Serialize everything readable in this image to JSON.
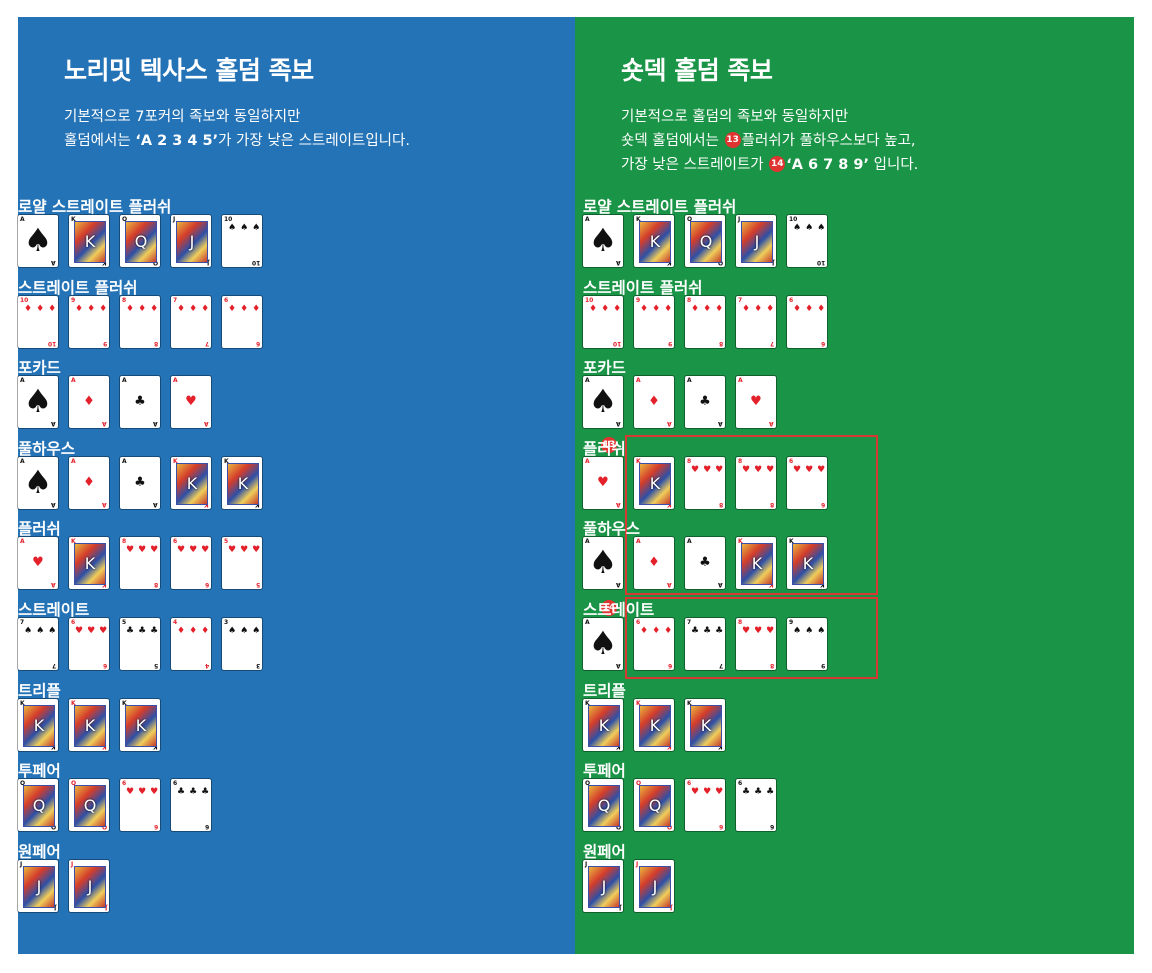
{
  "left": {
    "title": "노리밋 텍사스 홀덤 족보",
    "desc_line1": "기본적으로 7포커의 족보와 동일하지만",
    "desc_line2_pre": "홀덤에서는 ",
    "desc_line2_bold": "‘A 2 3 4 5’",
    "desc_line2_post": "가 가장 낮은 스트레이트입니다.",
    "hands": [
      {
        "label": "로얄 스트레이트 플러쉬",
        "cards": [
          [
            "A",
            "♠",
            "blk",
            "big"
          ],
          [
            "K",
            "♠",
            "blk",
            "face"
          ],
          [
            "Q",
            "♠",
            "blk",
            "face"
          ],
          [
            "J",
            "♠",
            "blk",
            "face"
          ],
          [
            "10",
            "♠",
            "blk",
            "pip"
          ]
        ]
      },
      {
        "label": "스트레이트 플러쉬",
        "cards": [
          [
            "10",
            "♦",
            "red",
            "pip"
          ],
          [
            "9",
            "♦",
            "red",
            "pip"
          ],
          [
            "8",
            "♦",
            "red",
            "pip"
          ],
          [
            "7",
            "♦",
            "red",
            "pip"
          ],
          [
            "6",
            "♦",
            "red",
            "pip"
          ]
        ]
      },
      {
        "label": "포카드",
        "cards": [
          [
            "A",
            "♠",
            "blk",
            "big"
          ],
          [
            "A",
            "♦",
            "red",
            "sm"
          ],
          [
            "A",
            "♣",
            "blk",
            "sm"
          ],
          [
            "A",
            "♥",
            "red",
            "sm"
          ]
        ]
      },
      {
        "label": "풀하우스",
        "cards": [
          [
            "A",
            "♠",
            "blk",
            "big"
          ],
          [
            "A",
            "♦",
            "red",
            "sm"
          ],
          [
            "A",
            "♣",
            "blk",
            "sm"
          ],
          [
            "K",
            "♦",
            "red",
            "face"
          ],
          [
            "K",
            "♣",
            "blk",
            "face"
          ]
        ]
      },
      {
        "label": "플러쉬",
        "cards": [
          [
            "A",
            "♥",
            "red",
            "sm"
          ],
          [
            "K",
            "♥",
            "red",
            "face"
          ],
          [
            "8",
            "♥",
            "red",
            "pip"
          ],
          [
            "6",
            "♥",
            "red",
            "pip"
          ],
          [
            "5",
            "♥",
            "red",
            "pip"
          ]
        ]
      },
      {
        "label": "스트레이트",
        "cards": [
          [
            "7",
            "♠",
            "blk",
            "pip"
          ],
          [
            "6",
            "♥",
            "red",
            "pip"
          ],
          [
            "5",
            "♣",
            "blk",
            "pip"
          ],
          [
            "4",
            "♦",
            "red",
            "pip"
          ],
          [
            "3",
            "♠",
            "blk",
            "pip"
          ]
        ]
      },
      {
        "label": "트리플",
        "cards": [
          [
            "K",
            "♠",
            "blk",
            "face"
          ],
          [
            "K",
            "♦",
            "red",
            "face"
          ],
          [
            "K",
            "♣",
            "blk",
            "face"
          ]
        ]
      },
      {
        "label": "투페어",
        "cards": [
          [
            "Q",
            "♣",
            "blk",
            "face"
          ],
          [
            "Q",
            "♦",
            "red",
            "face"
          ],
          [
            "6",
            "♥",
            "red",
            "pip"
          ],
          [
            "6",
            "♣",
            "blk",
            "pip"
          ]
        ]
      },
      {
        "label": "원페어",
        "cards": [
          [
            "J",
            "♣",
            "blk",
            "face"
          ],
          [
            "J",
            "♦",
            "red",
            "face"
          ]
        ]
      }
    ]
  },
  "right": {
    "title": "숏덱 홀덤 족보",
    "desc_line1": "기본적으로 홀덤의 족보와 동일하지만",
    "desc_line2_pre": "숏덱 홀덤에서는 ",
    "desc_line2_post": "플러쉬가 풀하우스보다 높고,",
    "desc_line3_pre": "가장 낮은 스트레이트가 ",
    "desc_line3_bold": "‘A 6 7 8 9’",
    "desc_line3_post": " 입니다.",
    "marker13": "13",
    "marker14": "14",
    "hands": [
      {
        "label": "로얄 스트레이트 플러쉬",
        "cards": [
          [
            "A",
            "♠",
            "blk",
            "big"
          ],
          [
            "K",
            "♠",
            "blk",
            "face"
          ],
          [
            "Q",
            "♠",
            "blk",
            "face"
          ],
          [
            "J",
            "♠",
            "blk",
            "face"
          ],
          [
            "10",
            "♠",
            "blk",
            "pip"
          ]
        ]
      },
      {
        "label": "스트레이트 플러쉬",
        "cards": [
          [
            "10",
            "♦",
            "red",
            "pip"
          ],
          [
            "9",
            "♦",
            "red",
            "pip"
          ],
          [
            "8",
            "♦",
            "red",
            "pip"
          ],
          [
            "7",
            "♦",
            "red",
            "pip"
          ],
          [
            "6",
            "♦",
            "red",
            "pip"
          ]
        ]
      },
      {
        "label": "포카드",
        "cards": [
          [
            "A",
            "♠",
            "blk",
            "big"
          ],
          [
            "A",
            "♦",
            "red",
            "sm"
          ],
          [
            "A",
            "♣",
            "blk",
            "sm"
          ],
          [
            "A",
            "♥",
            "red",
            "sm"
          ]
        ]
      },
      {
        "label": "플러쉬",
        "cards": [
          [
            "A",
            "♥",
            "red",
            "sm"
          ],
          [
            "K",
            "♥",
            "red",
            "face"
          ],
          [
            "8",
            "♥",
            "red",
            "pip"
          ],
          [
            "8",
            "♥",
            "red",
            "pip"
          ],
          [
            "6",
            "♥",
            "red",
            "pip"
          ]
        ]
      },
      {
        "label": "풀하우스",
        "cards": [
          [
            "A",
            "♠",
            "blk",
            "big"
          ],
          [
            "A",
            "♦",
            "red",
            "sm"
          ],
          [
            "A",
            "♣",
            "blk",
            "sm"
          ],
          [
            "K",
            "♦",
            "red",
            "face"
          ],
          [
            "K",
            "♣",
            "blk",
            "face"
          ]
        ]
      },
      {
        "label": "스트레이트",
        "cards": [
          [
            "A",
            "♠",
            "blk",
            "big"
          ],
          [
            "6",
            "♦",
            "red",
            "pip"
          ],
          [
            "7",
            "♣",
            "blk",
            "pip"
          ],
          [
            "8",
            "♥",
            "red",
            "pip"
          ],
          [
            "9",
            "♠",
            "blk",
            "pip"
          ]
        ]
      },
      {
        "label": "트리플",
        "cards": [
          [
            "K",
            "♠",
            "blk",
            "face"
          ],
          [
            "K",
            "♦",
            "red",
            "face"
          ],
          [
            "K",
            "♣",
            "blk",
            "face"
          ]
        ]
      },
      {
        "label": "투페어",
        "cards": [
          [
            "Q",
            "♣",
            "blk",
            "face"
          ],
          [
            "Q",
            "♦",
            "red",
            "face"
          ],
          [
            "6",
            "♥",
            "red",
            "pip"
          ],
          [
            "6",
            "♣",
            "blk",
            "pip"
          ]
        ]
      },
      {
        "label": "원페어",
        "cards": [
          [
            "J",
            "♣",
            "blk",
            "face"
          ],
          [
            "J",
            "♦",
            "red",
            "face"
          ]
        ]
      }
    ]
  },
  "colors": {
    "left_bg": "#2473b6",
    "right_bg": "#1a9446",
    "highlight": "#d83a33",
    "marker": "#e03431"
  }
}
